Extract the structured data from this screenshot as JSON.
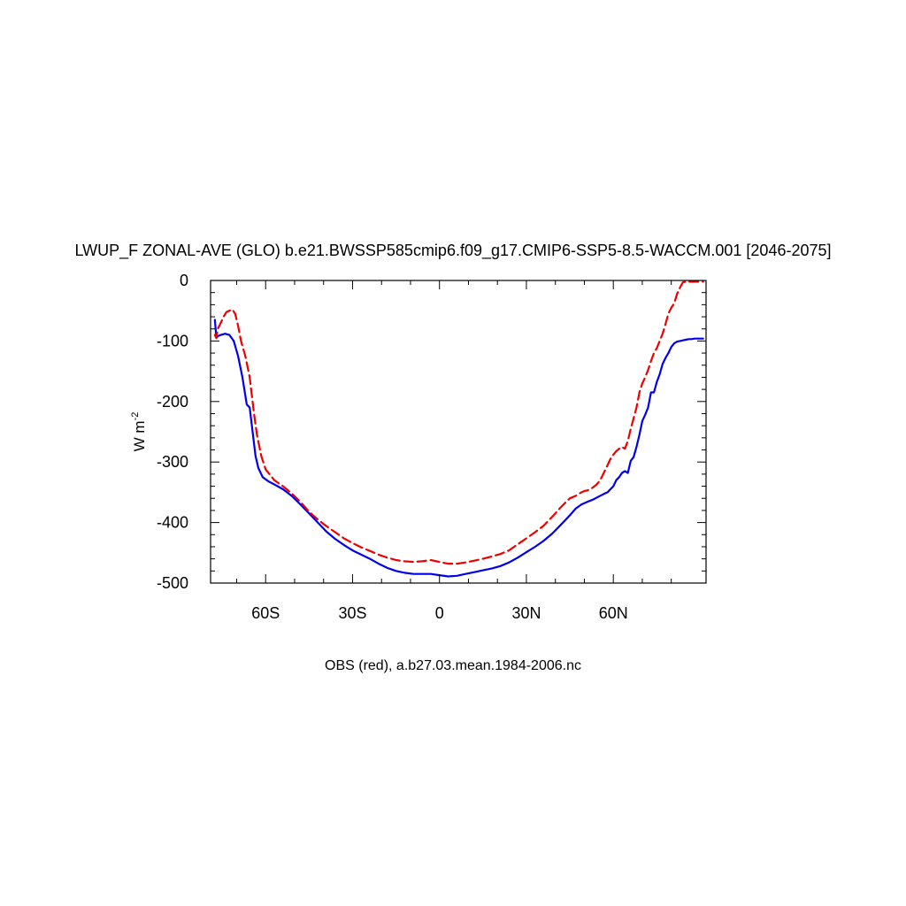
{
  "chart_data": {
    "type": "line",
    "title": "LWUP_F ZONAL-AVE (GLO) b.e21.BWSSP585cmip6.f09_g17.CMIP6-SSP5-8.5-WACCM.001 [2046-2075]",
    "ylabel_main": "W m",
    "ylabel_sup": "-2",
    "xlabel": "",
    "caption": "OBS (red), a.b27.03.mean.1984-2006.nc",
    "xlim": [
      -79,
      92
    ],
    "ylim": [
      -500,
      0
    ],
    "x_ticks": [
      {
        "value": -60,
        "label": "60S"
      },
      {
        "value": -30,
        "label": "30S"
      },
      {
        "value": 0,
        "label": "0"
      },
      {
        "value": 30,
        "label": "30N"
      },
      {
        "value": 60,
        "label": "60N"
      }
    ],
    "y_ticks": [
      0,
      -100,
      -200,
      -300,
      -400,
      -500
    ],
    "series": [
      {
        "color": "#0000ee",
        "dash": "solid",
        "x": [
          -77.5,
          -77,
          -76.5,
          -75.5,
          -74,
          -72.5,
          -71,
          -69.5,
          -68,
          -66.5,
          -65.5,
          -64.5,
          -63.5,
          -62.5,
          -61,
          -59,
          -57,
          -54,
          -51,
          -48,
          -45,
          -42,
          -39,
          -36,
          -33,
          -30,
          -27,
          -24,
          -21,
          -18,
          -15,
          -12,
          -9,
          -6,
          -3,
          0,
          3,
          6,
          9,
          12,
          15,
          18,
          21,
          24,
          27,
          30,
          33,
          36,
          39,
          42,
          45,
          47,
          49,
          51,
          53,
          55,
          57,
          58,
          59,
          60,
          61,
          62,
          63,
          64,
          65,
          66,
          67,
          68,
          69,
          70,
          71,
          72,
          73,
          74,
          75,
          76,
          77,
          78,
          79,
          80,
          81,
          82,
          83,
          84,
          85,
          86,
          87,
          88,
          89,
          90,
          91
        ],
        "values": [
          -65,
          -95,
          -92,
          -90,
          -88,
          -90,
          -100,
          -125,
          -160,
          -205,
          -210,
          -250,
          -290,
          -310,
          -325,
          -332,
          -337,
          -345,
          -356,
          -370,
          -385,
          -400,
          -415,
          -427,
          -437,
          -446,
          -453,
          -460,
          -468,
          -475,
          -480,
          -483,
          -485,
          -485,
          -485,
          -487,
          -489,
          -488,
          -485,
          -482,
          -479,
          -476,
          -472,
          -466,
          -458,
          -449,
          -440,
          -430,
          -418,
          -403,
          -388,
          -377,
          -370,
          -366,
          -362,
          -357,
          -352,
          -350,
          -345,
          -340,
          -330,
          -325,
          -318,
          -315,
          -318,
          -298,
          -292,
          -275,
          -255,
          -232,
          -222,
          -210,
          -185,
          -185,
          -168,
          -155,
          -138,
          -128,
          -120,
          -110,
          -104,
          -101,
          -100,
          -99,
          -98,
          -97,
          -97,
          -96,
          -96,
          -96,
          -96
        ]
      },
      {
        "color": "#ee0000",
        "dash": "dashed",
        "x": [
          -77.5,
          -77,
          -76.5,
          -75.5,
          -74.5,
          -73.5,
          -72.5,
          -71.5,
          -70.5,
          -69.5,
          -68.5,
          -67,
          -65.5,
          -64,
          -63,
          -61.5,
          -60,
          -57,
          -54,
          -51,
          -48,
          -45,
          -42,
          -39,
          -36,
          -33,
          -30,
          -27,
          -24,
          -21,
          -18,
          -15,
          -12,
          -9,
          -6,
          -3,
          0,
          3,
          6,
          9,
          12,
          15,
          18,
          21,
          24,
          27,
          30,
          33,
          36,
          39,
          42,
          45,
          47,
          49,
          50,
          51,
          52,
          53,
          54,
          55,
          56,
          57,
          58,
          59,
          60,
          61,
          62,
          63,
          64,
          65,
          66,
          67,
          68,
          69,
          70,
          71,
          72,
          73,
          74,
          75,
          76,
          77,
          78,
          79,
          80,
          81,
          82,
          83,
          84,
          85,
          86,
          87,
          88,
          89,
          90,
          91
        ],
        "values": [
          -90,
          -95,
          -80,
          -70,
          -60,
          -52,
          -50,
          -48,
          -55,
          -75,
          -100,
          -125,
          -160,
          -220,
          -255,
          -290,
          -312,
          -330,
          -340,
          -352,
          -366,
          -382,
          -395,
          -406,
          -416,
          -426,
          -434,
          -441,
          -447,
          -453,
          -458,
          -462,
          -464,
          -465,
          -464,
          -462,
          -465,
          -468,
          -468,
          -466,
          -463,
          -460,
          -456,
          -452,
          -446,
          -436,
          -426,
          -416,
          -405,
          -390,
          -374,
          -360,
          -356,
          -350,
          -348,
          -347,
          -345,
          -342,
          -338,
          -333,
          -325,
          -315,
          -305,
          -295,
          -288,
          -282,
          -278,
          -275,
          -278,
          -265,
          -245,
          -228,
          -210,
          -185,
          -170,
          -160,
          -148,
          -133,
          -120,
          -112,
          -100,
          -88,
          -72,
          -55,
          -45,
          -38,
          -22,
          -12,
          -3,
          -2,
          -2,
          -2,
          -2,
          -2,
          -2,
          -2
        ]
      }
    ]
  }
}
